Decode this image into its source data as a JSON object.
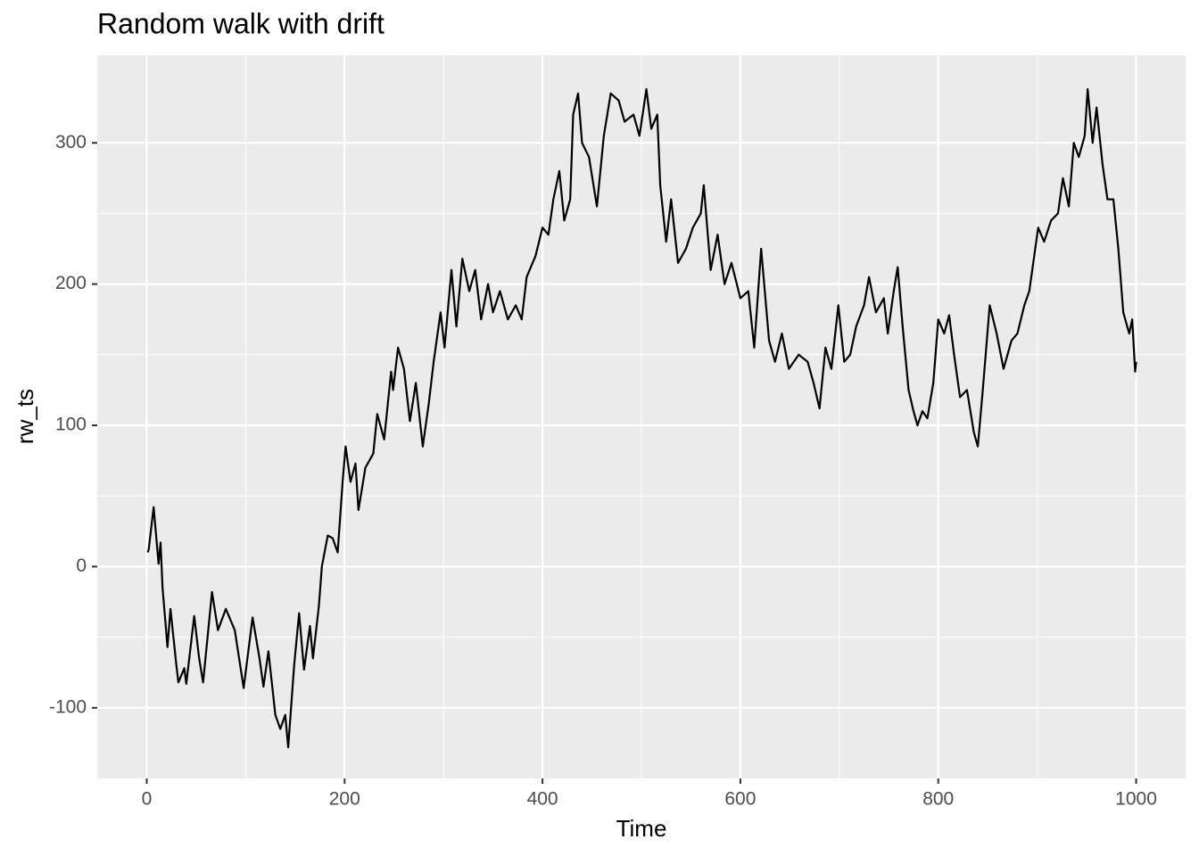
{
  "chart_data": {
    "type": "line",
    "title": "Random walk with drift",
    "x_label": "Time",
    "y_label": "rw_ts",
    "xlim": [
      -50,
      1050
    ],
    "ylim": [
      -150,
      362
    ],
    "xticks": [
      0,
      200,
      400,
      600,
      800,
      1000
    ],
    "yticks": [
      -100,
      0,
      100,
      200,
      300
    ],
    "x_minor_ticks": [
      100,
      300,
      500,
      700,
      900
    ],
    "y_minor_ticks": [
      -50,
      50,
      150,
      250
    ],
    "grid": true,
    "background": "#ebebeb",
    "x": [
      1,
      2,
      7,
      12,
      14,
      16,
      21,
      24,
      30,
      32,
      38,
      40,
      48,
      53,
      57,
      66,
      72,
      80,
      89,
      98,
      107,
      114,
      118,
      123,
      130,
      135,
      140,
      143,
      149,
      154,
      159,
      165,
      168,
      174,
      177,
      183,
      188,
      193,
      198,
      201,
      206,
      211,
      214,
      221,
      229,
      233,
      240,
      247,
      249,
      254,
      260,
      266,
      272,
      279,
      285,
      290,
      297,
      301,
      308,
      313,
      319,
      326,
      332,
      338,
      345,
      350,
      357,
      365,
      373,
      379,
      384,
      393,
      400,
      406,
      411,
      417,
      422,
      428,
      431,
      436,
      440,
      447,
      455,
      462,
      469,
      477,
      483,
      492,
      498,
      505,
      510,
      516,
      519,
      525,
      530,
      537,
      545,
      552,
      560,
      563,
      570,
      577,
      584,
      591,
      600,
      608,
      614,
      621,
      629,
      635,
      642,
      649,
      659,
      668,
      674,
      680,
      686,
      692,
      699,
      705,
      711,
      717,
      725,
      730,
      737,
      745,
      749,
      755,
      759,
      764,
      770,
      775,
      779,
      784,
      789,
      795,
      800,
      806,
      811,
      816,
      822,
      829,
      836,
      840,
      845,
      852,
      859,
      866,
      874,
      880,
      887,
      892,
      896,
      901,
      907,
      914,
      921,
      926,
      932,
      937,
      942,
      948,
      951,
      956,
      960,
      966,
      971,
      977,
      982,
      987,
      993,
      996,
      999,
      1000
    ],
    "series": [
      {
        "name": "rw_ts",
        "color": "#000000",
        "values": [
          10,
          12,
          42,
          2,
          17,
          -15,
          -57,
          -30,
          -70,
          -82,
          -72,
          -83,
          -35,
          -65,
          -82,
          -18,
          -45,
          -30,
          -45,
          -86,
          -36,
          -65,
          -85,
          -60,
          -105,
          -115,
          -105,
          -128,
          -70,
          -33,
          -73,
          -42,
          -65,
          -28,
          0,
          22,
          20,
          10,
          60,
          85,
          60,
          73,
          40,
          70,
          80,
          108,
          90,
          138,
          125,
          155,
          140,
          103,
          130,
          85,
          115,
          145,
          180,
          155,
          210,
          170,
          218,
          195,
          210,
          175,
          200,
          180,
          195,
          175,
          185,
          175,
          205,
          220,
          240,
          235,
          260,
          280,
          245,
          260,
          320,
          335,
          300,
          290,
          255,
          305,
          335,
          330,
          315,
          320,
          305,
          338,
          310,
          320,
          270,
          230,
          260,
          215,
          225,
          240,
          250,
          270,
          210,
          235,
          200,
          215,
          190,
          195,
          155,
          225,
          160,
          145,
          165,
          140,
          150,
          145,
          130,
          112,
          155,
          140,
          185,
          145,
          150,
          170,
          185,
          205,
          180,
          190,
          165,
          195,
          212,
          170,
          125,
          110,
          100,
          110,
          105,
          130,
          175,
          165,
          178,
          150,
          120,
          125,
          95,
          85,
          125,
          185,
          165,
          140,
          160,
          165,
          185,
          195,
          215,
          240,
          230,
          245,
          250,
          275,
          255,
          300,
          290,
          305,
          338,
          300,
          325,
          285,
          260,
          260,
          225,
          180,
          165,
          175,
          138,
          145
        ]
      }
    ]
  }
}
